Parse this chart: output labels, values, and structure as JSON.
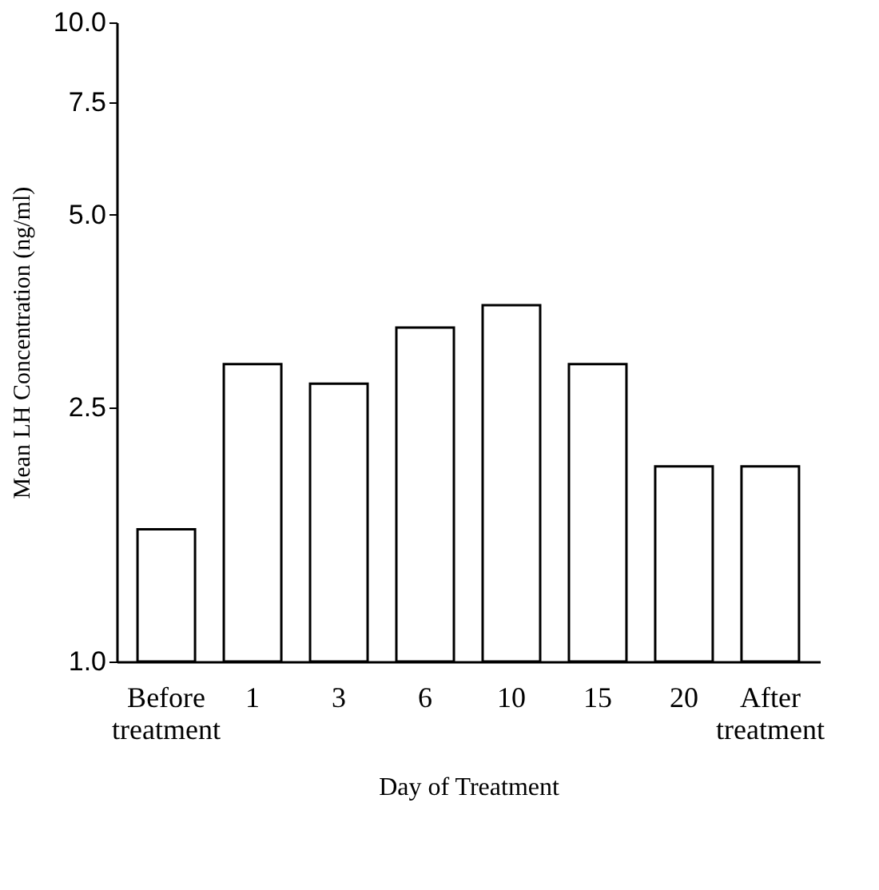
{
  "chart_data": {
    "type": "bar",
    "xlabel": "Day of Treatment",
    "ylabel": "Mean LH Concentration (ng/ml)",
    "categories": [
      "Before treatment",
      "1",
      "3",
      "6",
      "10",
      "15",
      "20",
      "After treatment"
    ],
    "values": [
      1.61,
      2.92,
      2.72,
      3.33,
      3.61,
      2.92,
      2.02,
      2.02
    ],
    "color": "#ffffff",
    "log": true,
    "ylim": [
      1.0,
      10.0
    ],
    "yticks": [
      {
        "value": 1.0,
        "label": "1.0"
      },
      {
        "value": 2.5,
        "label": "2.5"
      },
      {
        "value": 5.0,
        "label": "5.0"
      },
      {
        "value": 7.5,
        "label": "7.5"
      },
      {
        "value": 10.0,
        "label": "10.0"
      }
    ],
    "grid": false
  }
}
